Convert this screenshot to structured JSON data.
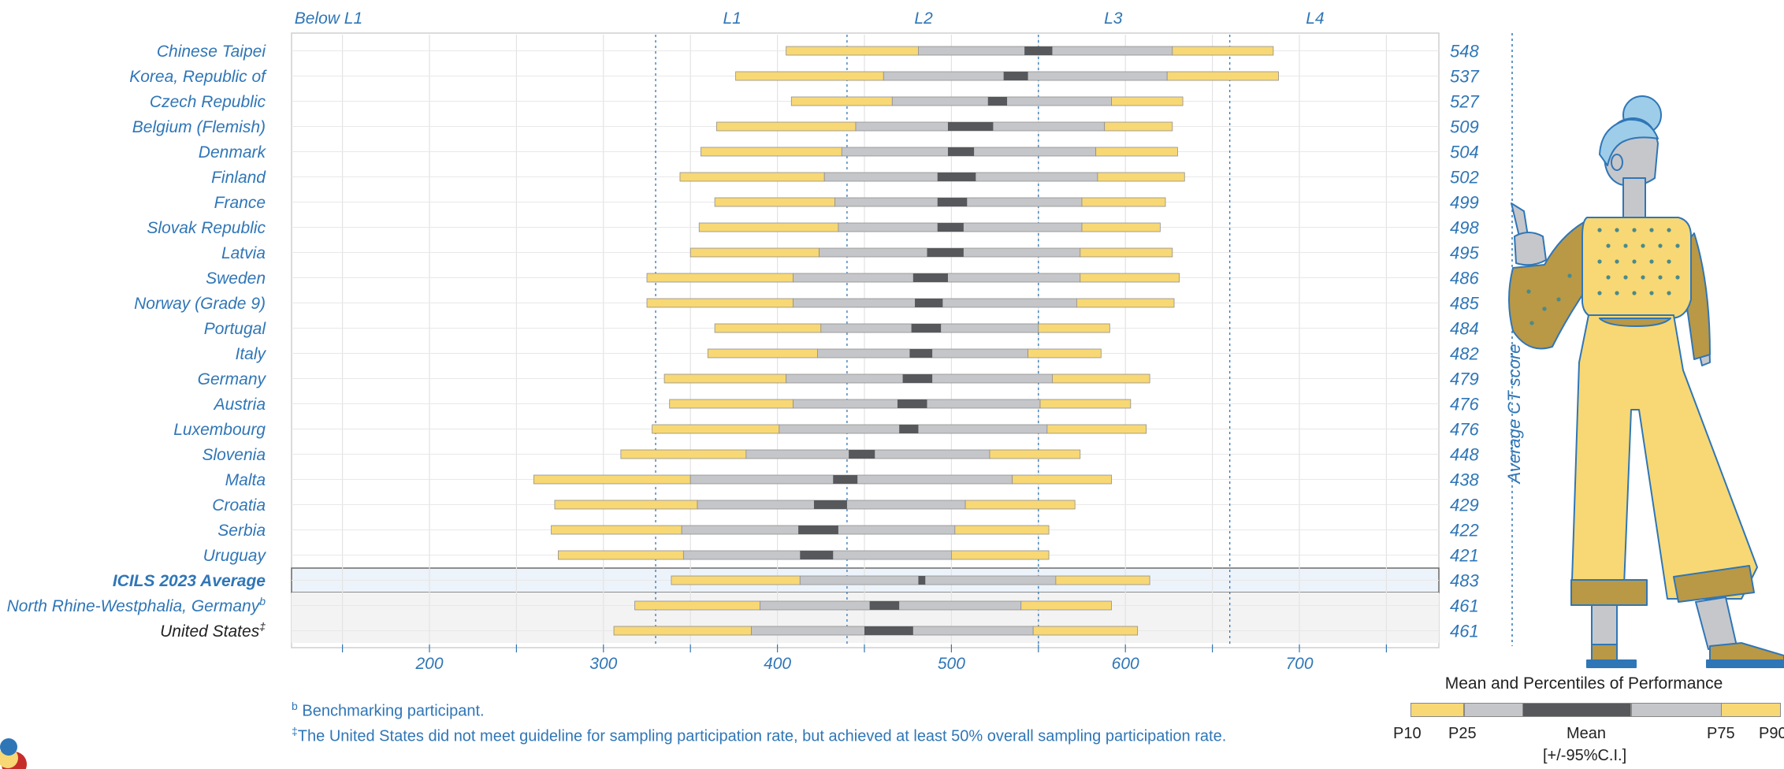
{
  "chart_data": {
    "type": "bar",
    "subtype": "percentile-range",
    "x_ticks": [
      200,
      300,
      400,
      500,
      600,
      700
    ],
    "xlim": [
      120,
      780
    ],
    "ylabel": "Average CT score",
    "levels": [
      {
        "label": "Below L1",
        "center": 142
      },
      {
        "label": "L1",
        "center": 374
      },
      {
        "label": "L2",
        "center": 484
      },
      {
        "label": "L3",
        "center": 593
      },
      {
        "label": "L4",
        "center": 709
      }
    ],
    "level_cuts": [
      330,
      440,
      550,
      660
    ],
    "rows": [
      {
        "name": "Chinese Taipei",
        "score": "548",
        "p10": 405,
        "p25": 481,
        "mean": 548,
        "ci_lo": 542,
        "ci_hi": 558,
        "p75": 627,
        "p90": 685
      },
      {
        "name": "Korea, Republic of",
        "score": "537",
        "p10": 376,
        "p25": 461,
        "mean": 537,
        "ci_lo": 530,
        "ci_hi": 544,
        "p75": 624,
        "p90": 688
      },
      {
        "name": "Czech Republic",
        "score": "527",
        "p10": 408,
        "p25": 466,
        "mean": 527,
        "ci_lo": 521,
        "ci_hi": 532,
        "p75": 592,
        "p90": 633
      },
      {
        "name": "Belgium (Flemish)",
        "score": "509",
        "p10": 365,
        "p25": 445,
        "mean": 509,
        "ci_lo": 498,
        "ci_hi": 524,
        "p75": 588,
        "p90": 627
      },
      {
        "name": "Denmark",
        "score": "504",
        "p10": 356,
        "p25": 437,
        "mean": 504,
        "ci_lo": 498,
        "ci_hi": 513,
        "p75": 583,
        "p90": 630
      },
      {
        "name": "Finland",
        "score": "502",
        "p10": 344,
        "p25": 427,
        "mean": 502,
        "ci_lo": 492,
        "ci_hi": 514,
        "p75": 584,
        "p90": 634
      },
      {
        "name": "France",
        "score": "499",
        "p10": 364,
        "p25": 433,
        "mean": 499,
        "ci_lo": 492,
        "ci_hi": 509,
        "p75": 575,
        "p90": 623
      },
      {
        "name": "Slovak Republic",
        "score": "498",
        "p10": 355,
        "p25": 435,
        "mean": 498,
        "ci_lo": 492,
        "ci_hi": 507,
        "p75": 575,
        "p90": 620
      },
      {
        "name": "Latvia",
        "score": "495",
        "p10": 350,
        "p25": 424,
        "mean": 495,
        "ci_lo": 486,
        "ci_hi": 507,
        "p75": 574,
        "p90": 627
      },
      {
        "name": "Sweden",
        "score": "486",
        "p10": 325,
        "p25": 409,
        "mean": 486,
        "ci_lo": 478,
        "ci_hi": 498,
        "p75": 574,
        "p90": 631
      },
      {
        "name": "Norway (Grade 9)",
        "score": "485",
        "p10": 325,
        "p25": 409,
        "mean": 485,
        "ci_lo": 479,
        "ci_hi": 495,
        "p75": 572,
        "p90": 628
      },
      {
        "name": "Portugal",
        "score": "484",
        "p10": 364,
        "p25": 425,
        "mean": 484,
        "ci_lo": 477,
        "ci_hi": 494,
        "p75": 550,
        "p90": 591
      },
      {
        "name": "Italy",
        "score": "482",
        "p10": 360,
        "p25": 423,
        "mean": 482,
        "ci_lo": 476,
        "ci_hi": 489,
        "p75": 544,
        "p90": 586
      },
      {
        "name": "Germany",
        "score": "479",
        "p10": 335,
        "p25": 405,
        "mean": 479,
        "ci_lo": 472,
        "ci_hi": 489,
        "p75": 558,
        "p90": 614
      },
      {
        "name": "Austria",
        "score": "476",
        "p10": 338,
        "p25": 409,
        "mean": 476,
        "ci_lo": 469,
        "ci_hi": 486,
        "p75": 551,
        "p90": 603
      },
      {
        "name": "Luxembourg",
        "score": "476",
        "p10": 328,
        "p25": 401,
        "mean": 476,
        "ci_lo": 470,
        "ci_hi": 481,
        "p75": 555,
        "p90": 612
      },
      {
        "name": "Slovenia",
        "score": "448",
        "p10": 310,
        "p25": 382,
        "mean": 448,
        "ci_lo": 441,
        "ci_hi": 456,
        "p75": 522,
        "p90": 574
      },
      {
        "name": "Malta",
        "score": "438",
        "p10": 260,
        "p25": 350,
        "mean": 438,
        "ci_lo": 432,
        "ci_hi": 446,
        "p75": 535,
        "p90": 592
      },
      {
        "name": "Croatia",
        "score": "429",
        "p10": 272,
        "p25": 354,
        "mean": 429,
        "ci_lo": 421,
        "ci_hi": 440,
        "p75": 508,
        "p90": 571
      },
      {
        "name": "Serbia",
        "score": "422",
        "p10": 270,
        "p25": 345,
        "mean": 422,
        "ci_lo": 412,
        "ci_hi": 435,
        "p75": 502,
        "p90": 556
      },
      {
        "name": "Uruguay",
        "score": "421",
        "p10": 274,
        "p25": 346,
        "mean": 421,
        "ci_lo": 413,
        "ci_hi": 432,
        "p75": 500,
        "p90": 556
      },
      {
        "name": "ICILS 2023 Average",
        "score": "483",
        "p10": 339,
        "p25": 413,
        "mean": 483,
        "ci_lo": 481,
        "ci_hi": 485,
        "p75": 560,
        "p90": 614,
        "style": "average"
      },
      {
        "name": "North Rhine-Westphalia, Germany",
        "mark": "b",
        "score": "461",
        "p10": 318,
        "p25": 390,
        "mean": 461,
        "ci_lo": 453,
        "ci_hi": 470,
        "p75": 540,
        "p90": 592,
        "style": "benchmark"
      },
      {
        "name": "United States",
        "mark": "‡",
        "score": "461",
        "p10": 306,
        "p25": 385,
        "mean": 461,
        "ci_lo": 450,
        "ci_hi": 478,
        "p75": 547,
        "p90": 607,
        "style": "us"
      }
    ]
  },
  "footnotes": {
    "b_mark": "b",
    "b_text": " Benchmarking participant.",
    "us_mark": "‡",
    "us_text": "The United States did not meet guideline for sampling participation rate, but achieved at least 50% overall sampling participation rate."
  },
  "legend": {
    "title": "Mean and Percentiles of Performance",
    "p10": "P10",
    "p25": "P25",
    "mean": "Mean",
    "p75": "P75",
    "p90": "P90",
    "ci": "[+/-95%C.I.]"
  },
  "colors": {
    "yellow": "#f7d874",
    "grey": "#c5c6c9",
    "dark": "#56585b",
    "blue": "#2f76b7",
    "gold": "#b99846",
    "skin": "#c6c7cb",
    "hair": "#9dcde9"
  }
}
